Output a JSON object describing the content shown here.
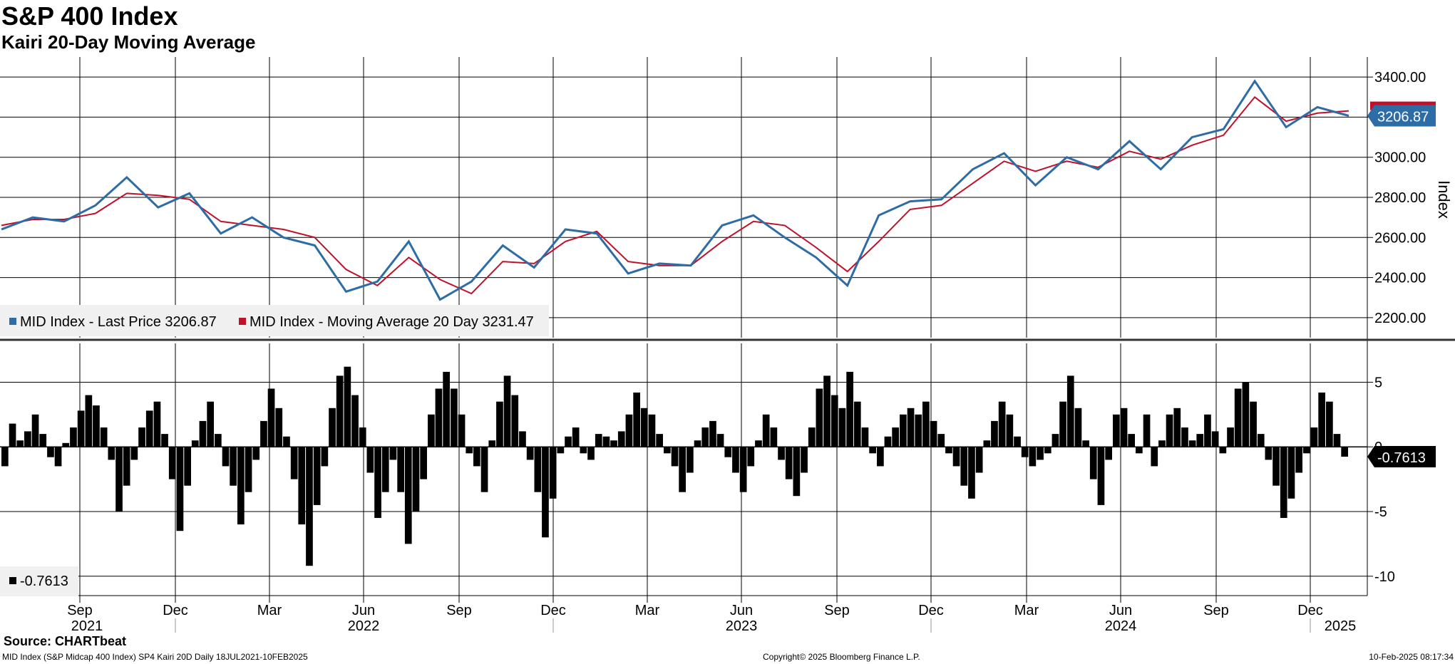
{
  "header": {
    "title": "S&P 400 Index",
    "subtitle": "Kairi 20-Day Moving Average"
  },
  "footer": {
    "source": "Source: CHARTbeat",
    "description": "MID Index (S&P Midcap 400 Index) SP4 Kairi 20D  Daily 18JUL2021-10FEB2025",
    "copyright": "Copyright© 2025 Bloomberg Finance L.P.",
    "timestamp": "10-Feb-2025 08:17:34"
  },
  "colors": {
    "price": "#2e6ca6",
    "moving_average": "#c0112a",
    "kairi": "#000000",
    "grid": "#000000"
  },
  "chart_data": [
    {
      "type": "line",
      "panel": "upper",
      "ylabel": "Index",
      "ylim": [
        2100,
        3500
      ],
      "yticks": [
        2200,
        2400,
        2600,
        2800,
        3000,
        3200,
        3400
      ],
      "ytick_labels": [
        "2200.00",
        "2400.00",
        "2600.00",
        "2800.00",
        "3000.00",
        "3200.00",
        "3400.00"
      ],
      "grid": true,
      "legend_position": "bottom-left",
      "last_value_label": "3206.87",
      "x": [
        "2021-07",
        "2021-08",
        "2021-09",
        "2021-10",
        "2021-11",
        "2021-12",
        "2022-01",
        "2022-02",
        "2022-03",
        "2022-04",
        "2022-05",
        "2022-06",
        "2022-07",
        "2022-08",
        "2022-09",
        "2022-10",
        "2022-11",
        "2022-12",
        "2023-01",
        "2023-02",
        "2023-03",
        "2023-04",
        "2023-05",
        "2023-06",
        "2023-07",
        "2023-08",
        "2023-09",
        "2023-10",
        "2023-11",
        "2023-12",
        "2024-01",
        "2024-02",
        "2024-03",
        "2024-04",
        "2024-05",
        "2024-06",
        "2024-07",
        "2024-08",
        "2024-09",
        "2024-10",
        "2024-11",
        "2024-12",
        "2025-01",
        "2025-02"
      ],
      "series": [
        {
          "name": "MID Index - Last Price",
          "legend_label": "MID Index - Last Price 3206.87",
          "values": [
            2640,
            2700,
            2680,
            2760,
            2900,
            2750,
            2820,
            2620,
            2700,
            2600,
            2560,
            2330,
            2380,
            2580,
            2290,
            2380,
            2560,
            2450,
            2640,
            2620,
            2420,
            2470,
            2460,
            2660,
            2710,
            2600,
            2500,
            2360,
            2710,
            2780,
            2790,
            2940,
            3020,
            2860,
            3000,
            2940,
            3080,
            2940,
            3100,
            3140,
            3380,
            3150,
            3250,
            3206.87
          ]
        },
        {
          "name": "MID Index - Moving Average 20 Day",
          "legend_label": "MID Index - Moving Average 20 Day 3231.47",
          "values": [
            2660,
            2690,
            2690,
            2720,
            2820,
            2810,
            2790,
            2680,
            2660,
            2640,
            2600,
            2440,
            2360,
            2500,
            2390,
            2320,
            2480,
            2470,
            2580,
            2630,
            2480,
            2460,
            2460,
            2580,
            2680,
            2660,
            2550,
            2430,
            2580,
            2740,
            2760,
            2870,
            2980,
            2930,
            2980,
            2950,
            3030,
            2990,
            3060,
            3110,
            3300,
            3180,
            3220,
            3231.47
          ]
        }
      ]
    },
    {
      "type": "bar",
      "panel": "lower",
      "ylim": [
        -11.5,
        8
      ],
      "yticks": [
        -10,
        -5,
        0,
        5
      ],
      "ytick_labels": [
        "-10",
        "-5",
        "0",
        "5"
      ],
      "grid": true,
      "legend_position": "bottom-left",
      "last_value_label": "-0.7613",
      "series": [
        {
          "name": "Kairi 20D",
          "legend_label": "-0.7613",
          "values": [
            -1.5,
            1.8,
            0.5,
            1.2,
            2.5,
            1.0,
            -0.8,
            -1.5,
            0.3,
            1.5,
            2.8,
            4.0,
            3.2,
            1.5,
            -1.0,
            -5.0,
            -3.0,
            -1.0,
            1.5,
            2.8,
            3.5,
            1.0,
            -2.5,
            -6.5,
            -3.0,
            0.5,
            2.0,
            3.5,
            1.0,
            -1.5,
            -3.0,
            -6.0,
            -3.5,
            -1.0,
            2.0,
            4.5,
            3.0,
            0.8,
            -2.5,
            -6.0,
            -9.2,
            -4.5,
            -1.5,
            3.0,
            5.5,
            6.2,
            4.0,
            1.5,
            -2.0,
            -5.5,
            -3.5,
            -1.0,
            -3.5,
            -7.5,
            -5.0,
            -2.5,
            2.5,
            4.5,
            5.8,
            4.5,
            2.5,
            -0.5,
            -1.5,
            -3.5,
            0.5,
            3.5,
            5.5,
            4.0,
            1.2,
            -1.0,
            -3.5,
            -7.0,
            -4.0,
            -0.5,
            0.8,
            1.5,
            -0.5,
            -1.0,
            1.0,
            0.8,
            0.5,
            1.2,
            2.5,
            4.2,
            3.0,
            2.5,
            1.0,
            -0.5,
            -1.5,
            -3.5,
            -2.0,
            0.5,
            1.5,
            2.0,
            1.0,
            -0.8,
            -2.0,
            -3.5,
            -1.5,
            0.5,
            2.5,
            1.5,
            -1.0,
            -2.5,
            -3.8,
            -2.0,
            1.5,
            4.5,
            5.5,
            4.0,
            3.0,
            5.8,
            3.5,
            1.5,
            -0.5,
            -1.5,
            0.8,
            1.5,
            2.5,
            3.0,
            2.5,
            3.5,
            2.0,
            1.0,
            -0.5,
            -1.5,
            -3.0,
            -4.0,
            -2.0,
            0.5,
            2.0,
            3.5,
            2.5,
            0.8,
            -0.8,
            -1.5,
            -1.0,
            -0.5,
            1.0,
            3.5,
            5.5,
            3.0,
            0.5,
            -2.5,
            -4.5,
            -1.0,
            2.5,
            3.0,
            1.0,
            -0.5,
            2.5,
            -1.5,
            0.5,
            2.5,
            3.0,
            1.5,
            0.5,
            1.0,
            2.5,
            1.2,
            -0.5,
            1.5,
            4.5,
            5.0,
            3.5,
            1.0,
            -1.0,
            -3.0,
            -5.5,
            -4.0,
            -2.0,
            -0.5,
            1.5,
            4.2,
            3.5,
            1.0,
            -0.76
          ]
        }
      ]
    }
  ],
  "time_axis": {
    "month_ticks": [
      "Sep",
      "Dec",
      "Mar",
      "Jun",
      "Sep",
      "Dec",
      "Mar",
      "Jun",
      "Sep",
      "Dec",
      "Mar",
      "Jun",
      "Sep",
      "Dec"
    ],
    "years": [
      "2021",
      "2022",
      "2023",
      "2024",
      "2025"
    ]
  }
}
